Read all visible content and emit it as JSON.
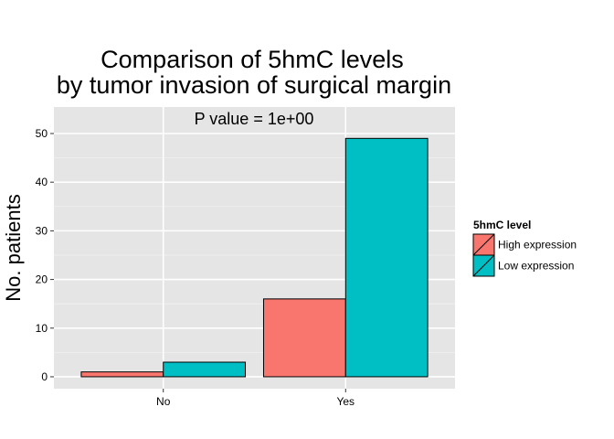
{
  "chart_data": {
    "type": "bar",
    "title_lines": [
      "Comparison of 5hmC levels",
      "by tumor invasion of surgical margin"
    ],
    "annotation": "P value = 1e+00",
    "xlabel": "",
    "ylabel": "No. patients",
    "categories": [
      "No",
      "Yes"
    ],
    "series": [
      {
        "name": "High expression",
        "values": [
          1,
          16
        ],
        "color": "#F8766D"
      },
      {
        "name": "Low expression",
        "values": [
          3,
          49
        ],
        "color": "#00BFC4"
      }
    ],
    "ylim": [
      -2.45,
      55.45
    ],
    "yticks": [
      0,
      10,
      20,
      30,
      40,
      50
    ],
    "ytick_labels": [
      "0",
      "10",
      "20",
      "30",
      "40",
      "50"
    ],
    "legend_title": "5hmC level",
    "legend_position": "right",
    "grid": true,
    "panel_background": "#E5E5E5"
  }
}
